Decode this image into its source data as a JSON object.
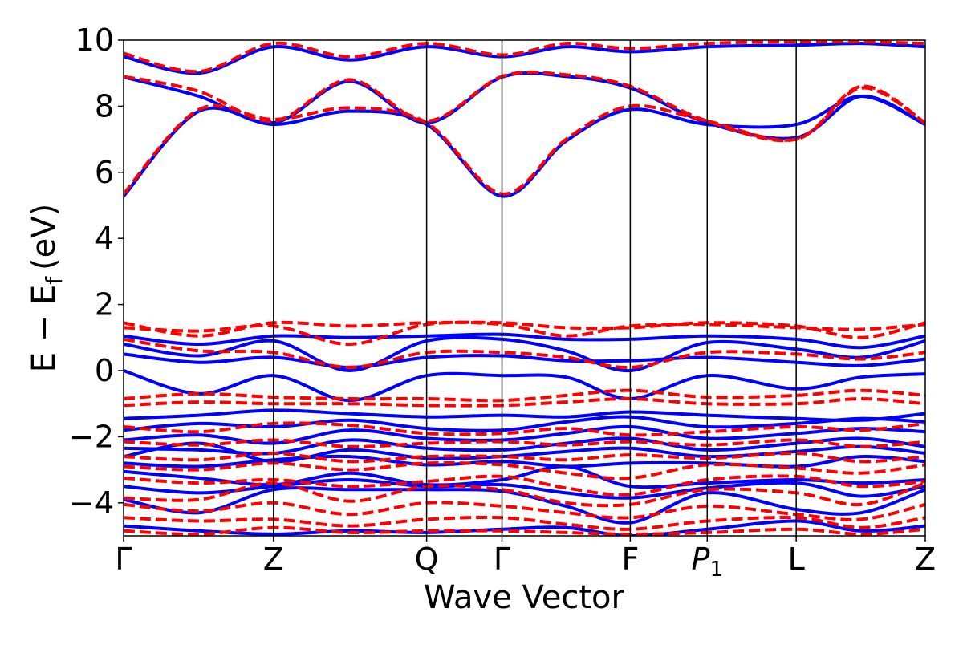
{
  "chart_data": {
    "type": "line",
    "title": "",
    "xlabel": "Wave Vector",
    "ylabel": "E − E_f (eV)",
    "ylabel_parts": {
      "main": "E − E",
      "sub": "f",
      "unit": "(eV)"
    },
    "ylim": [
      -5,
      10
    ],
    "yticks": [
      -4,
      -2,
      0,
      2,
      4,
      6,
      8,
      10
    ],
    "ytick_labels": [
      "−4",
      "−2",
      "0",
      "2",
      "4",
      "6",
      "8",
      "10"
    ],
    "xlim": [
      0,
      1
    ],
    "high_symmetry_points": [
      {
        "label": "Γ",
        "x": 0.0
      },
      {
        "label": "Z",
        "x": 0.187
      },
      {
        "label": "Q",
        "x": 0.378
      },
      {
        "label": "Γ",
        "x": 0.472
      },
      {
        "label": "F",
        "x": 0.632
      },
      {
        "label": "P₁",
        "x": 0.728
      },
      {
        "label": "L",
        "x": 0.839
      },
      {
        "label": "Z",
        "x": 1.0
      }
    ],
    "grid": false,
    "legend": "none",
    "series_styles": {
      "dashed": {
        "color": "#ff0000",
        "style": "dashed"
      },
      "solid": {
        "color": "#0000ff",
        "style": "solid"
      }
    },
    "series": [
      {
        "style": "dashed",
        "x": [
          0,
          0.094,
          0.187,
          0.282,
          0.378,
          0.472,
          0.552,
          0.632,
          0.728,
          0.839,
          0.92,
          1.0
        ],
        "y": [
          5.35,
          7.9,
          7.6,
          7.95,
          7.5,
          5.35,
          7.0,
          8.0,
          7.55,
          7.0,
          8.55,
          7.5
        ]
      },
      {
        "style": "solid",
        "x": [
          0,
          0.094,
          0.187,
          0.282,
          0.378,
          0.472,
          0.552,
          0.632,
          0.728,
          0.839,
          0.92,
          1.0
        ],
        "y": [
          5.28,
          7.85,
          7.45,
          7.85,
          7.45,
          5.28,
          6.95,
          7.9,
          7.45,
          7.45,
          8.3,
          7.45
        ]
      },
      {
        "style": "dashed",
        "x": [
          0,
          0.094,
          0.187,
          0.282,
          0.378,
          0.472,
          0.552,
          0.632,
          0.728,
          0.839,
          0.92,
          1.0
        ],
        "y": [
          8.9,
          8.45,
          7.55,
          8.8,
          7.55,
          8.9,
          8.95,
          8.6,
          7.55,
          7.0,
          8.6,
          7.5
        ]
      },
      {
        "style": "solid",
        "x": [
          0,
          0.094,
          0.187,
          0.282,
          0.378,
          0.472,
          0.552,
          0.632,
          0.728,
          0.839,
          0.92,
          1.0
        ],
        "y": [
          8.88,
          8.3,
          7.5,
          8.75,
          7.5,
          8.88,
          8.9,
          8.55,
          7.5,
          7.05,
          8.3,
          7.45
        ]
      },
      {
        "style": "dashed",
        "x": [
          0,
          0.094,
          0.187,
          0.282,
          0.378,
          0.472,
          0.552,
          0.632,
          0.728,
          0.839,
          0.92,
          1.0
        ],
        "y": [
          9.6,
          9.05,
          9.9,
          9.5,
          9.9,
          9.55,
          9.9,
          9.75,
          9.9,
          9.95,
          9.95,
          9.9
        ]
      },
      {
        "style": "solid",
        "x": [
          0,
          0.094,
          0.187,
          0.282,
          0.378,
          0.472,
          0.552,
          0.632,
          0.728,
          0.839,
          0.92,
          1.0
        ],
        "y": [
          9.5,
          9.0,
          9.8,
          9.4,
          9.8,
          9.5,
          9.8,
          9.65,
          9.8,
          9.85,
          9.9,
          9.8
        ]
      },
      {
        "style": "dashed",
        "x": [
          0,
          0.094,
          0.187,
          0.282,
          0.378,
          0.472,
          0.552,
          0.632,
          0.728,
          0.839,
          0.92,
          1.0
        ],
        "y": [
          1.45,
          1.05,
          1.45,
          1.35,
          1.45,
          1.45,
          1.3,
          1.3,
          1.45,
          1.35,
          1.0,
          1.45
        ]
      },
      {
        "style": "dashed",
        "x": [
          0,
          0.094,
          0.187,
          0.282,
          0.378,
          0.472,
          0.552,
          0.632,
          0.728,
          0.839,
          0.92,
          1.0
        ],
        "y": [
          1.3,
          1.2,
          1.35,
          0.8,
          1.4,
          1.4,
          1.05,
          1.35,
          1.4,
          1.3,
          1.25,
          1.4
        ]
      },
      {
        "style": "dashed",
        "x": [
          0,
          0.094,
          0.187,
          0.282,
          0.378,
          0.472,
          0.552,
          0.632,
          0.728,
          0.839,
          0.92,
          1.0
        ],
        "y": [
          0.95,
          0.6,
          0.55,
          0.1,
          0.55,
          0.55,
          0.4,
          0.1,
          0.55,
          0.5,
          0.35,
          0.55
        ]
      },
      {
        "style": "solid",
        "x": [
          0,
          0.094,
          0.187,
          0.282,
          0.378,
          0.472,
          0.552,
          0.632,
          0.728,
          0.839,
          0.92,
          1.0
        ],
        "y": [
          1.05,
          0.8,
          1.05,
          1.0,
          1.05,
          1.1,
          0.95,
          0.95,
          1.05,
          0.95,
          0.7,
          1.05
        ]
      },
      {
        "style": "solid",
        "x": [
          0,
          0.094,
          0.187,
          0.282,
          0.378,
          0.472,
          0.552,
          0.632,
          0.728,
          0.839,
          0.92,
          1.0
        ],
        "y": [
          0.8,
          0.45,
          0.9,
          0.0,
          0.9,
          0.95,
          0.6,
          0.0,
          0.85,
          0.65,
          0.4,
          0.9
        ]
      },
      {
        "style": "solid",
        "x": [
          0,
          0.094,
          0.187,
          0.282,
          0.378,
          0.472,
          0.552,
          0.632,
          0.728,
          0.839,
          0.92,
          1.0
        ],
        "y": [
          0.5,
          0.25,
          0.4,
          0.1,
          0.4,
          0.45,
          0.3,
          0.3,
          0.4,
          0.25,
          0.15,
          0.35
        ]
      },
      {
        "style": "solid",
        "x": [
          0,
          0.094,
          0.187,
          0.282,
          0.378,
          0.472,
          0.552,
          0.632,
          0.728,
          0.839,
          0.92,
          1.0
        ],
        "y": [
          0.0,
          -0.7,
          -0.15,
          -0.9,
          -0.15,
          -0.15,
          -0.2,
          -0.85,
          -0.15,
          -0.55,
          -0.2,
          -0.1
        ]
      },
      {
        "style": "dashed",
        "x": [
          0,
          0.094,
          0.187,
          0.282,
          0.378,
          0.472,
          0.552,
          0.632,
          0.728,
          0.839,
          0.92,
          1.0
        ],
        "y": [
          -0.85,
          -0.7,
          -0.8,
          -0.85,
          -0.85,
          -0.9,
          -0.75,
          -0.6,
          -0.8,
          -0.75,
          -0.6,
          -0.75
        ]
      },
      {
        "style": "dashed",
        "x": [
          0,
          0.094,
          0.187,
          0.282,
          0.378,
          0.472,
          0.552,
          0.632,
          0.728,
          0.839,
          0.92,
          1.0
        ],
        "y": [
          -1.05,
          -0.95,
          -1.0,
          -1.0,
          -1.05,
          -1.05,
          -0.95,
          -0.85,
          -1.0,
          -1.0,
          -0.85,
          -1.0
        ]
      },
      {
        "style": "solid",
        "x": [
          0,
          0.094,
          0.187,
          0.282,
          0.378,
          0.472,
          0.552,
          0.632,
          0.728,
          0.839,
          0.92,
          1.0
        ],
        "y": [
          -1.45,
          -1.35,
          -1.2,
          -1.3,
          -1.4,
          -1.35,
          -1.4,
          -1.25,
          -1.35,
          -1.45,
          -1.5,
          -1.3
        ]
      },
      {
        "style": "solid",
        "x": [
          0,
          0.094,
          0.187,
          0.282,
          0.378,
          0.472,
          0.552,
          0.632,
          0.728,
          0.839,
          0.92,
          1.0
        ],
        "y": [
          -1.8,
          -1.6,
          -1.7,
          -1.5,
          -1.75,
          -1.8,
          -1.55,
          -1.4,
          -1.7,
          -1.6,
          -1.45,
          -1.55
        ]
      },
      {
        "style": "dashed",
        "x": [
          0,
          0.094,
          0.187,
          0.282,
          0.378,
          0.472,
          0.552,
          0.632,
          0.728,
          0.839,
          0.92,
          1.0
        ],
        "y": [
          -1.7,
          -1.85,
          -1.6,
          -1.65,
          -1.9,
          -1.9,
          -1.75,
          -1.95,
          -1.85,
          -1.7,
          -1.8,
          -1.6
        ]
      },
      {
        "style": "solid",
        "x": [
          0,
          0.094,
          0.187,
          0.282,
          0.378,
          0.472,
          0.552,
          0.632,
          0.728,
          0.839,
          0.92,
          1.0
        ],
        "y": [
          -2.1,
          -1.95,
          -2.2,
          -1.8,
          -2.05,
          -2.1,
          -1.9,
          -1.7,
          -2.05,
          -1.9,
          -1.75,
          -1.85
        ]
      },
      {
        "style": "dashed",
        "x": [
          0,
          0.094,
          0.187,
          0.282,
          0.378,
          0.472,
          0.552,
          0.632,
          0.728,
          0.839,
          0.92,
          1.0
        ],
        "y": [
          -2.15,
          -2.25,
          -2.1,
          -2.3,
          -2.2,
          -2.15,
          -2.25,
          -2.15,
          -2.25,
          -2.1,
          -2.3,
          -2.15
        ]
      },
      {
        "style": "solid",
        "x": [
          0,
          0.094,
          0.187,
          0.282,
          0.378,
          0.472,
          0.552,
          0.632,
          0.728,
          0.839,
          0.92,
          1.0
        ],
        "y": [
          -2.35,
          -2.4,
          -2.5,
          -2.1,
          -2.35,
          -2.4,
          -2.2,
          -2.05,
          -2.4,
          -2.2,
          -2.05,
          -2.3
        ]
      },
      {
        "style": "solid",
        "x": [
          0,
          0.094,
          0.187,
          0.282,
          0.378,
          0.472,
          0.552,
          0.632,
          0.728,
          0.839,
          0.92,
          1.0
        ],
        "y": [
          -2.6,
          -2.2,
          -2.75,
          -2.4,
          -2.65,
          -2.6,
          -2.45,
          -2.35,
          -2.6,
          -2.45,
          -2.3,
          -2.5
        ]
      },
      {
        "style": "dashed",
        "x": [
          0,
          0.094,
          0.187,
          0.282,
          0.378,
          0.472,
          0.552,
          0.632,
          0.728,
          0.839,
          0.92,
          1.0
        ],
        "y": [
          -2.6,
          -2.7,
          -2.5,
          -2.75,
          -2.6,
          -2.6,
          -2.7,
          -2.55,
          -2.65,
          -2.5,
          -2.75,
          -2.6
        ]
      },
      {
        "style": "solid",
        "x": [
          0,
          0.094,
          0.187,
          0.282,
          0.378,
          0.472,
          0.552,
          0.632,
          0.728,
          0.839,
          0.92,
          1.0
        ],
        "y": [
          -2.8,
          -2.9,
          -2.7,
          -2.6,
          -2.85,
          -2.75,
          -2.9,
          -2.8,
          -2.8,
          -2.9,
          -2.6,
          -2.75
        ]
      },
      {
        "style": "dashed",
        "x": [
          0,
          0.094,
          0.187,
          0.282,
          0.378,
          0.472,
          0.552,
          0.632,
          0.728,
          0.839,
          0.92,
          1.0
        ],
        "y": [
          -2.9,
          -3.0,
          -2.8,
          -3.0,
          -2.8,
          -2.85,
          -3.1,
          -3.25,
          -2.85,
          -2.95,
          -3.1,
          -2.85
        ]
      },
      {
        "style": "solid",
        "x": [
          0,
          0.094,
          0.187,
          0.282,
          0.378,
          0.472,
          0.552,
          0.632,
          0.728,
          0.839,
          0.92,
          1.0
        ],
        "y": [
          -3.05,
          -3.25,
          -3.45,
          -3.1,
          -3.45,
          -3.3,
          -2.9,
          -3.5,
          -3.4,
          -3.3,
          -3.4,
          -3.3
        ]
      },
      {
        "style": "dashed",
        "x": [
          0,
          0.094,
          0.187,
          0.282,
          0.378,
          0.472,
          0.552,
          0.632,
          0.728,
          0.839,
          0.92,
          1.0
        ],
        "y": [
          -3.25,
          -3.4,
          -3.3,
          -3.5,
          -3.35,
          -3.2,
          -3.55,
          -3.75,
          -3.3,
          -3.2,
          -3.5,
          -3.35
        ]
      },
      {
        "style": "solid",
        "x": [
          0,
          0.094,
          0.187,
          0.282,
          0.378,
          0.472,
          0.552,
          0.632,
          0.728,
          0.839,
          0.92,
          1.0
        ],
        "y": [
          -3.5,
          -3.7,
          -3.5,
          -3.3,
          -3.5,
          -3.45,
          -3.7,
          -3.85,
          -3.55,
          -3.4,
          -3.8,
          -3.5
        ]
      },
      {
        "style": "dashed",
        "x": [
          0,
          0.094,
          0.187,
          0.282,
          0.378,
          0.472,
          0.552,
          0.632,
          0.728,
          0.839,
          0.92,
          1.0
        ],
        "y": [
          -3.85,
          -3.9,
          -3.4,
          -3.95,
          -3.5,
          -3.6,
          -4.0,
          -4.05,
          -3.6,
          -3.7,
          -4.05,
          -3.4
        ]
      },
      {
        "style": "solid",
        "x": [
          0,
          0.094,
          0.187,
          0.282,
          0.378,
          0.472,
          0.552,
          0.632,
          0.728,
          0.839,
          0.92,
          1.0
        ],
        "y": [
          -3.9,
          -4.3,
          -3.6,
          -3.6,
          -3.6,
          -3.65,
          -4.1,
          -4.6,
          -3.7,
          -4.2,
          -4.3,
          -3.6
        ]
      },
      {
        "style": "dashed",
        "x": [
          0,
          0.094,
          0.187,
          0.282,
          0.378,
          0.472,
          0.552,
          0.632,
          0.728,
          0.839,
          0.92,
          1.0
        ],
        "y": [
          -4.05,
          -4.25,
          -4.0,
          -4.35,
          -4.0,
          -4.1,
          -4.3,
          -4.45,
          -4.1,
          -4.35,
          -4.5,
          -4.05
        ]
      },
      {
        "style": "dashed",
        "x": [
          0,
          0.094,
          0.187,
          0.282,
          0.378,
          0.472,
          0.552,
          0.632,
          0.728,
          0.839,
          0.92,
          1.0
        ],
        "y": [
          -4.45,
          -4.55,
          -4.5,
          -4.7,
          -4.5,
          -4.45,
          -4.65,
          -4.8,
          -4.55,
          -4.45,
          -4.75,
          -4.45
        ]
      },
      {
        "style": "solid",
        "x": [
          0,
          0.094,
          0.187,
          0.282,
          0.378,
          0.472,
          0.552,
          0.632,
          0.728,
          0.839,
          0.92,
          1.0
        ],
        "y": [
          -4.7,
          -4.85,
          -4.95,
          -4.85,
          -4.9,
          -4.8,
          -4.75,
          -5.0,
          -4.8,
          -4.55,
          -4.85,
          -4.7
        ]
      },
      {
        "style": "dashed",
        "x": [
          0,
          0.094,
          0.187,
          0.282,
          0.378,
          0.472,
          0.552,
          0.632,
          0.728,
          0.839,
          0.92,
          1.0
        ],
        "y": [
          -4.85,
          -4.95,
          -4.75,
          -4.9,
          -4.85,
          -4.85,
          -4.9,
          -4.95,
          -4.9,
          -4.8,
          -4.95,
          -4.8
        ]
      }
    ]
  }
}
